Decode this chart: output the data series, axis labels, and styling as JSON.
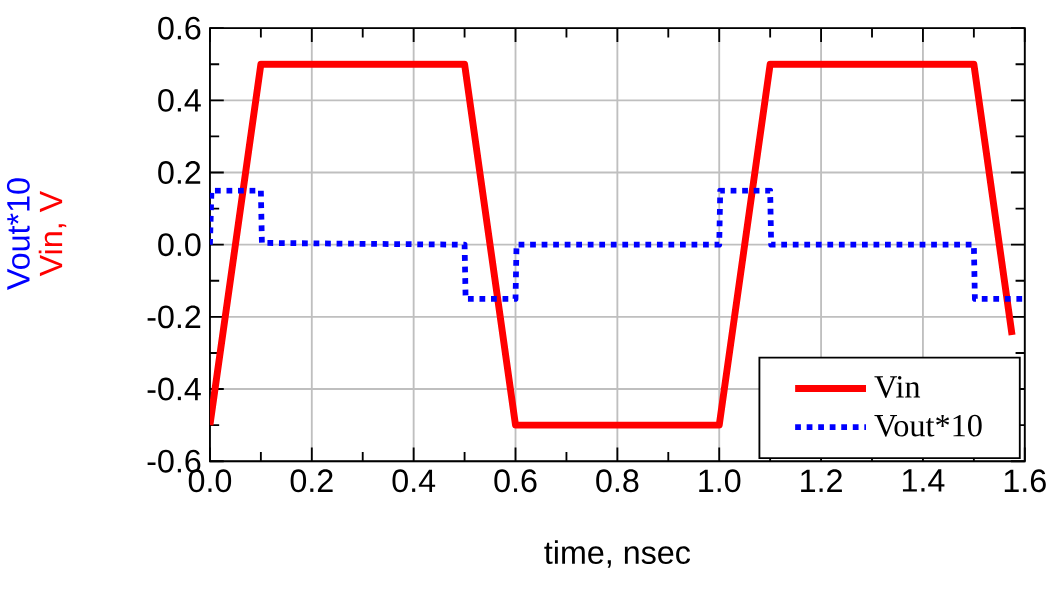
{
  "chart_data": {
    "type": "line",
    "xlabel": "time, nsec",
    "ylabel": "Vin, V",
    "y2label": "Vout*10",
    "xlim": [
      0,
      1.6
    ],
    "ylim": [
      -0.6,
      0.6
    ],
    "xticks": [
      {
        "value": 0,
        "label": "0.0"
      },
      {
        "value": 0.1,
        "label": null
      },
      {
        "value": 0.2,
        "label": "0.2"
      },
      {
        "value": 0.3,
        "label": null
      },
      {
        "value": 0.4,
        "label": "0.4"
      },
      {
        "value": 0.5,
        "label": null
      },
      {
        "value": 0.6,
        "label": "0.6"
      },
      {
        "value": 0.7,
        "label": null
      },
      {
        "value": 0.8,
        "label": "0.8"
      },
      {
        "value": 0.9,
        "label": null
      },
      {
        "value": 1.0,
        "label": "1.0"
      },
      {
        "value": 1.1,
        "label": null
      },
      {
        "value": 1.2,
        "label": "1.2"
      },
      {
        "value": 1.3,
        "label": null
      },
      {
        "value": 1.4,
        "label": "1.4"
      },
      {
        "value": 1.5,
        "label": null
      },
      {
        "value": 1.6,
        "label": "1.6"
      }
    ],
    "yticks": [
      {
        "value": -0.6,
        "label": "-0.6"
      },
      {
        "value": -0.5,
        "label": null
      },
      {
        "value": -0.4,
        "label": "-0.4"
      },
      {
        "value": -0.3,
        "label": null
      },
      {
        "value": -0.2,
        "label": "-0.2"
      },
      {
        "value": -0.1,
        "label": null
      },
      {
        "value": 0,
        "label": "0.0"
      },
      {
        "value": 0.1,
        "label": null
      },
      {
        "value": 0.2,
        "label": "0.2"
      },
      {
        "value": 0.3,
        "label": null
      },
      {
        "value": 0.4,
        "label": "0.4"
      },
      {
        "value": 0.5,
        "label": null
      },
      {
        "value": 0.6,
        "label": "0.6"
      }
    ],
    "grid": true,
    "legend": "bottom right",
    "series": [
      {
        "name": "Vin",
        "color": "#ff0000",
        "line_style": "solid",
        "x": [
          0,
          0.1,
          0.5,
          0.6,
          1.0,
          1.1,
          1.5,
          1.575
        ],
        "values": [
          -0.5,
          0.5,
          0.5,
          -0.5,
          -0.5,
          0.5,
          0.5,
          -0.25
        ]
      },
      {
        "name": "Vout*10",
        "color": "#0000ff",
        "line_style": "dotted",
        "x": [
          0,
          0.003,
          0.1,
          0.102,
          0.5,
          0.502,
          0.6,
          0.602,
          1.0,
          1.002,
          1.1,
          1.102,
          1.5,
          1.502,
          1.6
        ],
        "values": [
          0,
          0.15,
          0.15,
          0.005,
          0,
          -0.15,
          -0.15,
          0,
          0,
          0.15,
          0.15,
          0,
          0,
          -0.15,
          -0.15
        ]
      }
    ]
  }
}
